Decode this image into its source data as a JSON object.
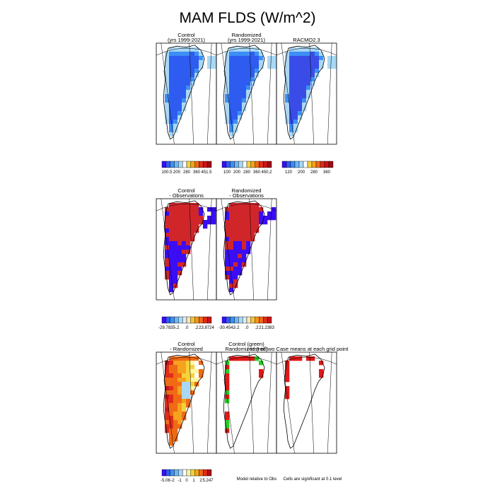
{
  "title": "MAM FLDS (W/m^2)",
  "chart_data": {
    "type": "heatmap",
    "panels": [
      {
        "id": "control",
        "title": [
          "Control",
          "(yrs 1999-2021)"
        ],
        "field": "flux"
      },
      {
        "id": "randomized",
        "title": [
          "Randomized",
          "(yrs 1999-2021)"
        ],
        "field": "flux"
      },
      {
        "id": "racmo",
        "title": [
          "RACMO2.3"
        ],
        "field": "flux"
      },
      {
        "id": "control-obs",
        "title": [
          "Control",
          "- Observations"
        ],
        "field": "bias"
      },
      {
        "id": "randomized-obs",
        "title": [
          "Randomized",
          "- Observations"
        ],
        "field": "bias"
      },
      {
        "id": "control-randomized",
        "title": [
          "Control",
          "- Randomized"
        ],
        "field": "diff"
      },
      {
        "id": "closer-to-obs",
        "title": [
          "Control (green)",
          "Randomized (red)"
        ],
        "field": "closer",
        "footnote": "Model relative to Obs"
      },
      {
        "id": "significance",
        "title": [
          "t-test of two Case means at each grid point"
        ],
        "field": "sig",
        "footnote": "Cells are significant at 0.1 level"
      }
    ],
    "colorbars": [
      {
        "id": "cb-control",
        "labels": [
          "100.5",
          "200",
          "280",
          "360",
          "451.5"
        ],
        "colors": [
          "#3a0df5",
          "#2e5cf0",
          "#3d8ff5",
          "#6cb8f7",
          "#a8d8f5",
          "#ffffff",
          "#f5d23a",
          "#f5a21e",
          "#f06a14",
          "#e02b1a",
          "#c9141a",
          "#9e0c12"
        ]
      },
      {
        "id": "cb-randomized",
        "labels": [
          "100",
          "200",
          "280",
          "360",
          "450.2"
        ],
        "colors": [
          "#3a0df5",
          "#2e5cf0",
          "#3d8ff5",
          "#6cb8f7",
          "#a8d8f5",
          "#ffffff",
          "#f5d23a",
          "#f5a21e",
          "#f06a14",
          "#e02b1a",
          "#c9141a",
          "#9e0c12"
        ]
      },
      {
        "id": "cb-racmo",
        "labels": [
          "120",
          "200",
          "280",
          "360"
        ],
        "colors": [
          "#3a0df5",
          "#2e5cf0",
          "#3d8ff5",
          "#6cb8f7",
          "#a8d8f5",
          "#ffffff",
          "#f5d23a",
          "#f5a21e",
          "#f06a14",
          "#e02b1a",
          "#c9141a",
          "#9e0c12"
        ]
      },
      {
        "id": "cb-control-obs",
        "labels": [
          "-29.7835",
          "-.2",
          ".0",
          ".2",
          "23.8724"
        ],
        "colors": [
          "#3a0df5",
          "#2e5cf0",
          "#3d8ff5",
          "#6cb8f7",
          "#a8d8f5",
          "#d8eefa",
          "#fbe8a0",
          "#f5c23a",
          "#f5961e",
          "#f06a14",
          "#e02b1a",
          "#c9141a"
        ]
      },
      {
        "id": "cb-randomized-obs",
        "labels": [
          "-30.4542",
          "-.2",
          ".0",
          ".2",
          "21.2383"
        ],
        "colors": [
          "#3a0df5",
          "#2e5cf0",
          "#3d8ff5",
          "#6cb8f7",
          "#a8d8f5",
          "#d8eefa",
          "#fbe8a0",
          "#f5c23a",
          "#f5961e",
          "#f06a14",
          "#e02b1a",
          "#c9141a"
        ]
      },
      {
        "id": "cb-control-randomized",
        "labels": [
          "-5.06",
          "-2",
          "-1",
          "0",
          "1",
          "2",
          "5.247"
        ],
        "colors": [
          "#3a0df5",
          "#2e5cf0",
          "#3d8ff5",
          "#6cb8f7",
          "#a8d8f5",
          "#ffffff",
          "#fdf5a0",
          "#f5d23a",
          "#f5a21e",
          "#f06a14",
          "#e02b1a",
          "#b01016"
        ]
      }
    ],
    "colors": {
      "flux_inner": "#2e5cf0",
      "flux_ring": "#3d8ff5",
      "flux_edge": "#a8d8f5",
      "racmo_inner": "#3a4ce8",
      "bias_red": "#d0262a",
      "bias_blue": "#3a0df5",
      "control_green": "#22d022",
      "randomized_red": "#e01818"
    }
  }
}
